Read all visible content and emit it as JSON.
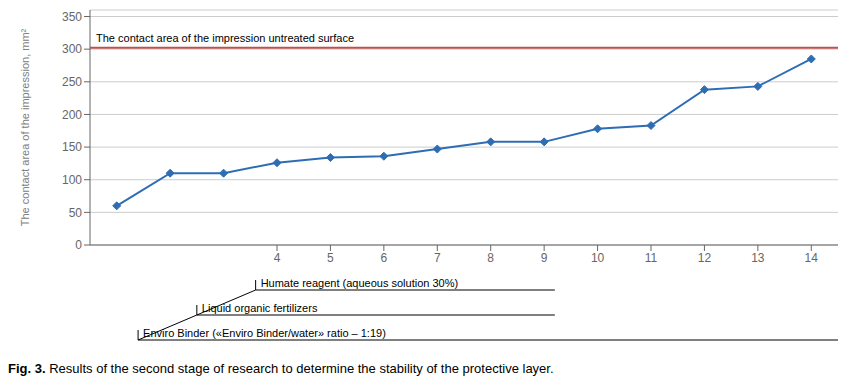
{
  "chart_data": {
    "type": "line",
    "x": [
      1,
      2,
      3,
      4,
      5,
      6,
      7,
      8,
      9,
      10,
      11,
      12,
      13,
      14
    ],
    "values": [
      60,
      110,
      110,
      126,
      134,
      136,
      147,
      158,
      158,
      178,
      183,
      238,
      243,
      285
    ],
    "color": "#2E6DB4",
    "marker": "diamond",
    "ylabel": "The contact area of the impression, mm²",
    "xlim": [
      0.5,
      14.5
    ],
    "ylim": [
      0,
      360
    ],
    "xticks": [
      4,
      5,
      6,
      7,
      8,
      9,
      10,
      11,
      12,
      13,
      14
    ],
    "yticks": [
      0,
      50,
      100,
      150,
      200,
      250,
      300,
      350
    ],
    "grid": true,
    "reference_line": {
      "y": 302,
      "label": "The contact area of the impression untreated surface",
      "color": "#C0504D"
    },
    "brackets": [
      {
        "label": "Humate reagent (aqueous solution 30%)",
        "start": 3.6,
        "end": 9.2
      },
      {
        "label": "Liquid organic fertilizers",
        "start": 2.5,
        "end": 9.2
      },
      {
        "label": "Enviro Binder («Enviro Binder/water» ratio – 1:19)",
        "start": 1.4,
        "end": 14.5
      }
    ],
    "caption_label": "Fig. 3.",
    "caption": "Results of the second stage of research to determine the stability of the protective layer."
  }
}
